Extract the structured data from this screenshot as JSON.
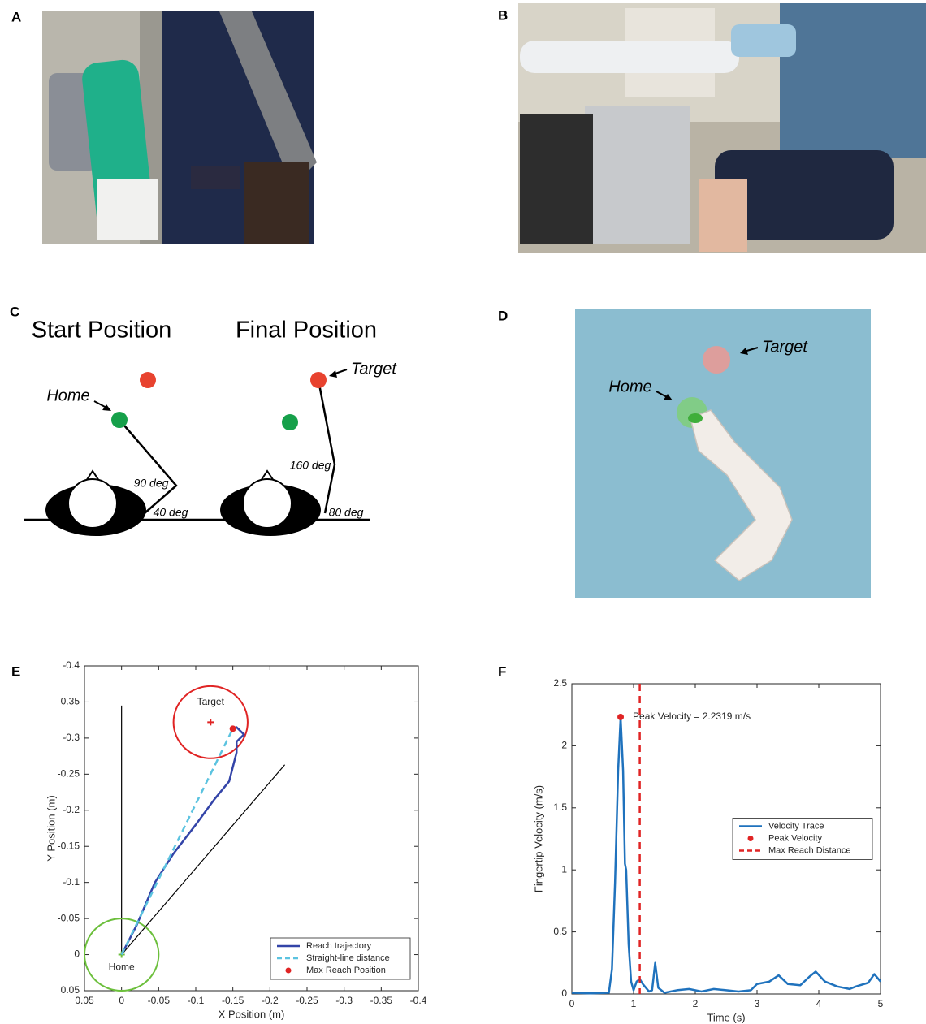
{
  "panel_labels": [
    "A",
    "B",
    "C",
    "D",
    "E",
    "F"
  ],
  "diagram_c": {
    "titles": [
      "Start Position",
      "Final Position"
    ],
    "home": "Home",
    "target": "Target",
    "angles": [
      "90 deg",
      "40 deg",
      "160 deg",
      "80 deg"
    ]
  },
  "diagram_d": {
    "target": "Target",
    "home": "Home"
  },
  "chart_data": [
    {
      "type": "line",
      "xlabel": "X Position (m)",
      "ylabel": "Y Position (m)",
      "xlim": [
        0.05,
        -0.4
      ],
      "ylim": [
        0.05,
        -0.4
      ],
      "xticks": [
        0.05,
        0,
        -0.05,
        -0.1,
        -0.15,
        -0.2,
        -0.25,
        -0.3,
        -0.35,
        -0.4
      ],
      "yticks": [
        0.05,
        0,
        -0.05,
        -0.1,
        -0.15,
        -0.2,
        -0.25,
        -0.3,
        -0.35,
        -0.4
      ],
      "grid": false,
      "legend": "lower right",
      "series": [
        {
          "name": "Reach trajectory",
          "color": "#3344a8",
          "style": "solid",
          "x": [
            0,
            -0.02,
            -0.045,
            -0.07,
            -0.1,
            -0.125,
            -0.145,
            -0.155,
            -0.155,
            -0.165,
            -0.155,
            -0.15
          ],
          "values": [
            0,
            -0.04,
            -0.1,
            -0.14,
            -0.18,
            -0.215,
            -0.24,
            -0.28,
            -0.295,
            -0.305,
            -0.315,
            -0.313
          ]
        },
        {
          "name": "Straight-line distance",
          "color": "#5bc3e0",
          "style": "dashed",
          "x": [
            0,
            -0.15
          ],
          "values": [
            0,
            -0.313
          ]
        },
        {
          "name": "Max Reach Position",
          "color": "#e02424",
          "style": "marker",
          "x": [
            -0.15
          ],
          "values": [
            -0.313
          ]
        }
      ],
      "reference_lines": [
        {
          "color": "#000000",
          "x": [
            0,
            0
          ],
          "values": [
            0,
            -0.345
          ]
        },
        {
          "color": "#000000",
          "x": [
            0,
            -0.22
          ],
          "values": [
            0,
            -0.263
          ]
        }
      ],
      "circles": [
        {
          "color": "#e02424",
          "x": -0.12,
          "y": -0.322,
          "r": 0.05
        },
        {
          "color": "#6cbf3c",
          "x": 0,
          "y": 0,
          "r": 0.05
        }
      ],
      "annotations": [
        "Target",
        "Home"
      ]
    },
    {
      "type": "line",
      "xlabel": "Time (s)",
      "ylabel": "Fingertip Velocity (m/s)",
      "xlim": [
        0,
        5
      ],
      "ylim": [
        0,
        2.5
      ],
      "xticks": [
        0,
        1,
        2,
        3,
        4,
        5
      ],
      "yticks": [
        0,
        0.5,
        1,
        1.5,
        2,
        2.5
      ],
      "grid": false,
      "legend": "center right",
      "series": [
        {
          "name": "Velocity Trace",
          "color": "#1f72bd",
          "style": "solid",
          "x": [
            0,
            0.3,
            0.6,
            0.65,
            0.7,
            0.75,
            0.79,
            0.83,
            0.86,
            0.88,
            0.92,
            0.96,
            1.0,
            1.05,
            1.1,
            1.15,
            1.25,
            1.3,
            1.35,
            1.4,
            1.5,
            1.7,
            1.9,
            2.1,
            2.3,
            2.5,
            2.7,
            2.9,
            3.0,
            3.2,
            3.35,
            3.5,
            3.7,
            3.85,
            3.95,
            4.1,
            4.3,
            4.5,
            4.6,
            4.8,
            4.9,
            5.0
          ],
          "values": [
            0.01,
            0.005,
            0.01,
            0.2,
            0.9,
            1.8,
            2.23,
            1.8,
            1.05,
            1.0,
            0.4,
            0.1,
            0.03,
            0.1,
            0.12,
            0.08,
            0.02,
            0.03,
            0.25,
            0.05,
            0.01,
            0.03,
            0.04,
            0.02,
            0.04,
            0.03,
            0.02,
            0.03,
            0.08,
            0.1,
            0.15,
            0.08,
            0.07,
            0.14,
            0.18,
            0.1,
            0.06,
            0.04,
            0.06,
            0.09,
            0.16,
            0.1
          ]
        },
        {
          "name": "Peak Velocity",
          "color": "#e02424",
          "style": "marker",
          "x": [
            0.79
          ],
          "values": [
            2.2319
          ]
        },
        {
          "name": "Max Reach Distance",
          "color": "#e02424",
          "style": "vline",
          "x": [
            1.1
          ]
        }
      ],
      "annotations": [
        "Peak Velocity = 2.2319 m/s"
      ]
    }
  ]
}
